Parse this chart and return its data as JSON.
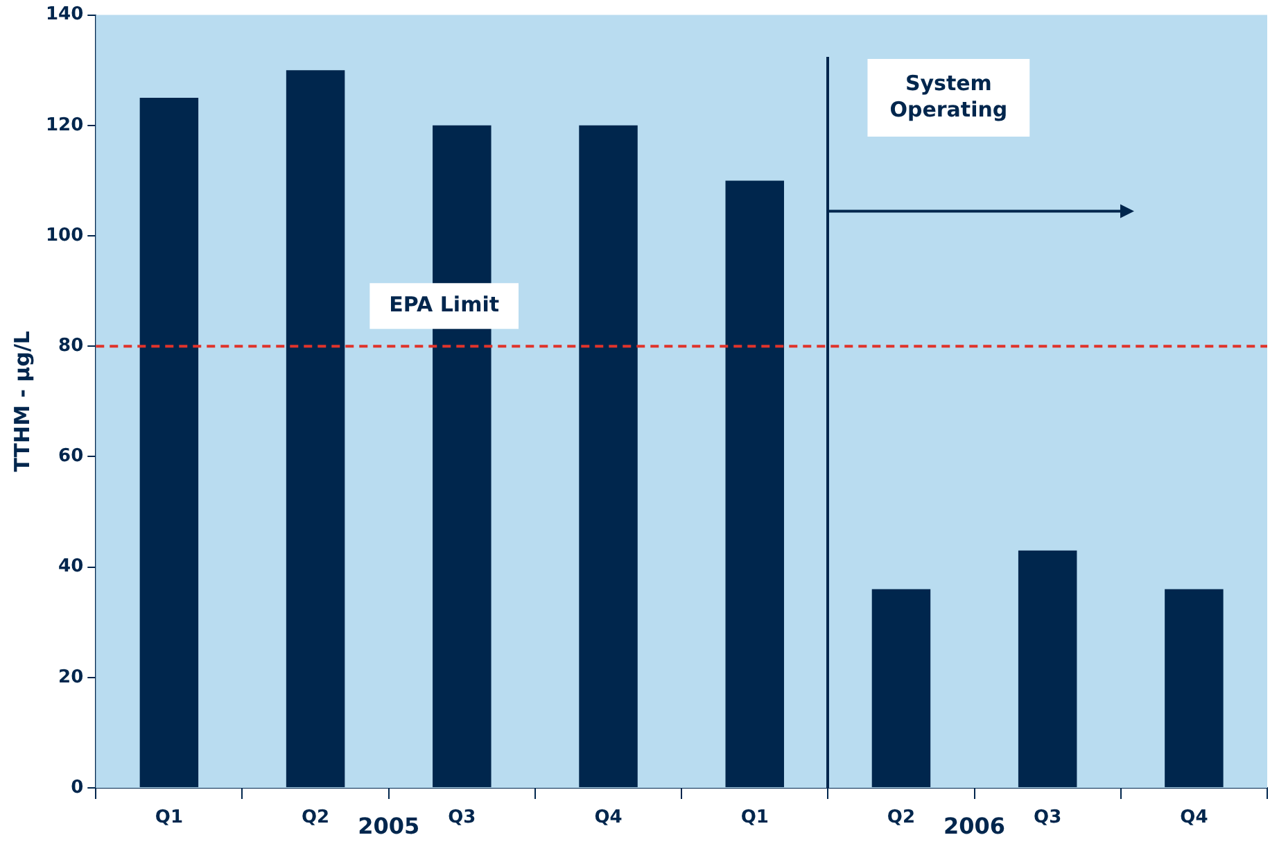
{
  "chart_data": {
    "type": "bar",
    "ylabel": "TTHM - µg/L",
    "categories": [
      "Q1",
      "Q2",
      "Q3",
      "Q4",
      "Q1",
      "Q2",
      "Q3",
      "Q4"
    ],
    "values": [
      125,
      130,
      120,
      120,
      110,
      36,
      43,
      36
    ],
    "color": "#00264d",
    "ylim": [
      0,
      140
    ],
    "yticks": [
      0,
      20,
      40,
      60,
      80,
      100,
      120,
      140
    ],
    "grid": false,
    "legend": false,
    "ref_lines": [
      {
        "axis": "y",
        "value": 80,
        "label": "EPA Limit",
        "color": "#e0332b",
        "line_style": "dashed"
      }
    ],
    "annotations": [
      "2005",
      "2006",
      "System Operating"
    ]
  }
}
